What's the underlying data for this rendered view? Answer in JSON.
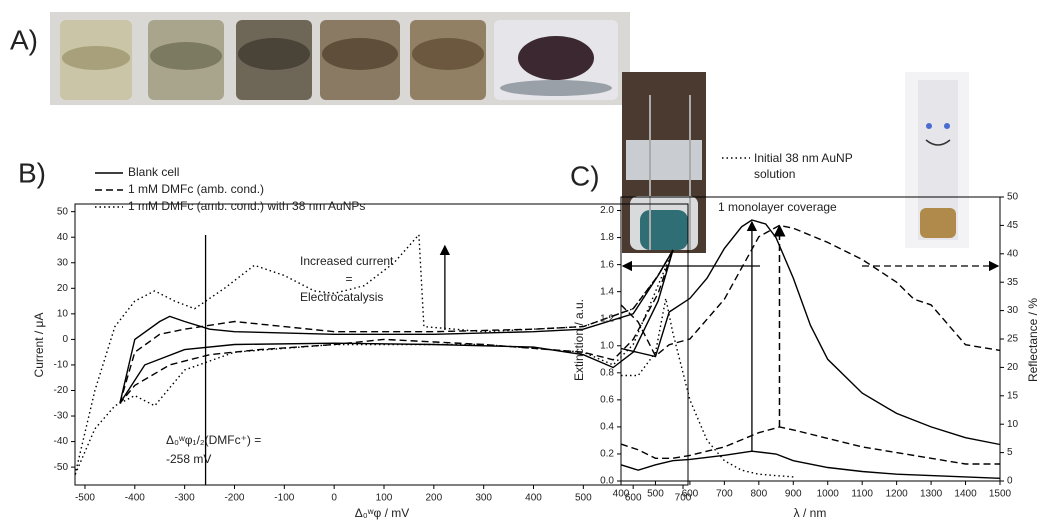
{
  "panel_a": {
    "label": "A)"
  },
  "chart_data": [
    {
      "type": "line",
      "panel_label": "B)",
      "xlabel": "Δ₀ʷφ / mV",
      "ylabel": "Current / μA",
      "xlim": [
        -520,
        710
      ],
      "ylim": [
        -57,
        53
      ],
      "xticks": [
        -500,
        -400,
        -300,
        -200,
        -100,
        0,
        100,
        200,
        300,
        400,
        500,
        600,
        700
      ],
      "yticks": [
        -50,
        -40,
        -30,
        -20,
        -10,
        0,
        10,
        20,
        30,
        40,
        50
      ],
      "legend": "top-left",
      "annotations": [
        "Increased current",
        "=",
        "Electrocatalysis",
        "Δ₀ʷφ₁/₂(DMFc⁺) =",
        "-258 mV"
      ],
      "series": [
        {
          "name": "Blank cell",
          "color": "#000000",
          "linestyle": "solid",
          "x": [
            -430,
            -400,
            -350,
            -330,
            -300,
            -250,
            -200,
            0,
            200,
            400,
            500,
            600,
            650,
            680,
            650,
            600,
            560,
            500,
            400,
            200,
            0,
            -200,
            -300,
            -380,
            -430
          ],
          "values": [
            -25,
            0,
            7,
            9,
            7,
            4,
            3,
            2,
            2,
            3,
            4,
            10,
            25,
            35,
            15,
            -5,
            -11,
            -6,
            -3,
            -2,
            -1.5,
            -2,
            -4,
            -10,
            -25
          ]
        },
        {
          "name": "1 mM DMFc (amb. cond.)",
          "color": "#000000",
          "linestyle": "dashed",
          "x": [
            -430,
            -400,
            -350,
            -300,
            -200,
            -100,
            0,
            200,
            400,
            500,
            600,
            650,
            680,
            650,
            600,
            560,
            500,
            300,
            100,
            0,
            -150,
            -250,
            -330,
            -400,
            -430
          ],
          "values": [
            -25,
            -5,
            2,
            4,
            7,
            5,
            3,
            3,
            4,
            5,
            12,
            25,
            35,
            18,
            0,
            -8,
            -5,
            -2,
            0,
            -2,
            -4,
            -6,
            -10,
            -18,
            -25
          ]
        },
        {
          "name": "1 mM DMFc (amb. cond.) with 38 nm AuNPs",
          "color": "#000000",
          "linestyle": "dotted",
          "x": [
            -520,
            -480,
            -440,
            -400,
            -360,
            -320,
            -280,
            -220,
            -160,
            -100,
            -40,
            0,
            60,
            120,
            170,
            180,
            300,
            500,
            600,
            650,
            680,
            600,
            560,
            500,
            300,
            0,
            -200,
            -300,
            -360,
            -400,
            -440,
            -480,
            -520
          ],
          "values": [
            -53,
            -20,
            5,
            15,
            19,
            15,
            12,
            20,
            29,
            25,
            19,
            18,
            21,
            30,
            41,
            5,
            3,
            5,
            12,
            25,
            35,
            -2,
            -10,
            -5,
            -2,
            -2,
            -5,
            -12,
            -26,
            -22,
            -26,
            -35,
            -53
          ]
        }
      ]
    },
    {
      "type": "line",
      "panel_label": "C)",
      "xlabel": "λ / nm",
      "ylabel": "Extinction / a.u.",
      "y2label": "Reflectance / %",
      "xlim": [
        400,
        1500
      ],
      "ylim": [
        0,
        2.1
      ],
      "y2lim": [
        0,
        50
      ],
      "xticks": [
        400,
        500,
        600,
        700,
        800,
        900,
        1000,
        1100,
        1200,
        1300,
        1400,
        1500
      ],
      "yticks": [
        {
          "value": 0,
          "label": "0.0"
        },
        0.2,
        0.4,
        0.6,
        0.8,
        {
          "value": 1,
          "label": "1.0"
        },
        1.2,
        1.4,
        1.6,
        1.8,
        {
          "value": 2,
          "label": "2.0"
        }
      ],
      "y2ticks": [
        0,
        5,
        10,
        15,
        20,
        25,
        30,
        35,
        40,
        45,
        50
      ],
      "legend": "top-center",
      "annotations": [
        "1 monolayer coverage"
      ],
      "series": [
        {
          "name": "Initial 38 nm AuNP solution",
          "color": "#000000",
          "linestyle": "dotted",
          "x": [
            400,
            450,
            500,
            530,
            550,
            600,
            650,
            700,
            750,
            800,
            850,
            900
          ],
          "values": [
            0.78,
            0.78,
            0.95,
            1.35,
            1.1,
            0.6,
            0.3,
            0.15,
            0.08,
            0.05,
            0.04,
            0.03
          ]
        },
        {
          "color": "#000000",
          "linestyle": "solid",
          "x": [
            400,
            450,
            500,
            550,
            600,
            700,
            780,
            850,
            900,
            1000,
            1100,
            1200,
            1300,
            1400,
            1500
          ],
          "values": [
            0.12,
            0.08,
            0.12,
            0.15,
            0.16,
            0.19,
            0.22,
            0.2,
            0.15,
            0.1,
            0.07,
            0.05,
            0.04,
            0.03,
            0.02
          ]
        },
        {
          "color": "#000000",
          "linestyle": "solid",
          "x": [
            400,
            450,
            500,
            540,
            600,
            650,
            700,
            750,
            780,
            820,
            850,
            900,
            950,
            1000,
            1100,
            1200,
            1300,
            1400,
            1500
          ],
          "values": [
            0.98,
            0.95,
            0.92,
            1.25,
            1.35,
            1.5,
            1.72,
            1.88,
            1.93,
            1.9,
            1.8,
            1.5,
            1.15,
            0.9,
            0.65,
            0.5,
            0.4,
            0.32,
            0.27
          ]
        },
        {
          "color": "#000000",
          "linestyle": "dashed",
          "axis": "y2",
          "x": [
            400,
            450,
            500,
            550,
            600,
            700,
            800,
            860,
            900,
            1000,
            1100,
            1200,
            1300,
            1400,
            1500
          ],
          "values": [
            6.5,
            5.5,
            4,
            4,
            4.5,
            6,
            8.5,
            9.5,
            9,
            7.5,
            6,
            5,
            4,
            3,
            3
          ]
        },
        {
          "color": "#000000",
          "linestyle": "dashed",
          "axis": "y2",
          "x": [
            400,
            450,
            500,
            540,
            600,
            700,
            800,
            860,
            900,
            1000,
            1100,
            1200,
            1250,
            1300,
            1400,
            1500
          ],
          "values": [
            31,
            28,
            22,
            24,
            25,
            32,
            43,
            45,
            44.5,
            42,
            39,
            35,
            32,
            31,
            24,
            23
          ]
        }
      ]
    }
  ]
}
